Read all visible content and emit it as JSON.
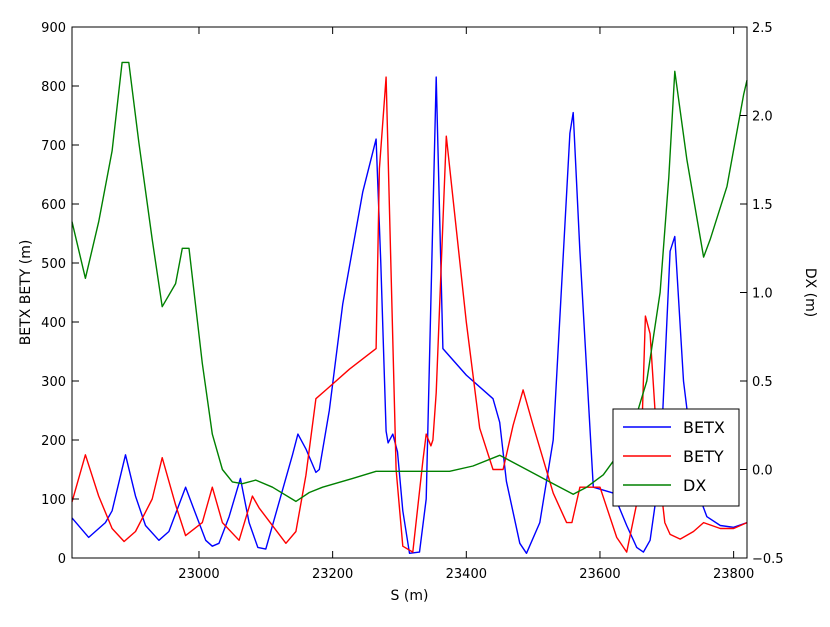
{
  "chart_data": {
    "type": "line",
    "xlabel": "S (m)",
    "ylabel_left": "BETX BETY (m)",
    "ylabel_right": "DX (m)",
    "xlim": [
      22810,
      23820
    ],
    "ylim_left": [
      0,
      900
    ],
    "ylim_right": [
      -0.5,
      2.5
    ],
    "x_ticks": [
      23000,
      23200,
      23400,
      23600,
      23800
    ],
    "y_left_ticks": [
      0,
      100,
      200,
      300,
      400,
      500,
      600,
      700,
      800,
      900
    ],
    "y_right_ticks": [
      -0.5,
      0.0,
      0.5,
      1.0,
      1.5,
      2.0,
      2.5
    ],
    "y_right_tick_labels": [
      "−0.5",
      "0.0",
      "0.5",
      "1.0",
      "1.5",
      "2.0",
      "2.5"
    ],
    "grid": false,
    "legend_position": "lower-right",
    "series": [
      {
        "name": "BETX",
        "axis": "left",
        "color": "#0000ff",
        "x": [
          22810,
          22835,
          22860,
          22870,
          22890,
          22905,
          22920,
          22940,
          22955,
          22980,
          22995,
          23010,
          23020,
          23030,
          23045,
          23062,
          23075,
          23088,
          23100,
          23140,
          23148,
          23160,
          23175,
          23180,
          23195,
          23215,
          23245,
          23265,
          23272,
          23280,
          23283,
          23290,
          23297,
          23305,
          23315,
          23330,
          23340,
          23355,
          23365,
          23400,
          23440,
          23450,
          23460,
          23480,
          23490,
          23510,
          23530,
          23555,
          23560,
          23570,
          23590,
          23620,
          23640,
          23655,
          23665,
          23675,
          23690,
          23705,
          23712,
          23725,
          23745,
          23760,
          23780,
          23800,
          23820
        ],
        "y": [
          68,
          35,
          60,
          80,
          175,
          105,
          55,
          30,
          45,
          120,
          75,
          30,
          20,
          25,
          70,
          135,
          60,
          18,
          15,
          175,
          210,
          185,
          145,
          150,
          250,
          430,
          620,
          710,
          500,
          215,
          195,
          210,
          180,
          80,
          8,
          10,
          100,
          815,
          355,
          310,
          270,
          230,
          130,
          25,
          8,
          60,
          200,
          720,
          755,
          520,
          120,
          110,
          55,
          18,
          10,
          30,
          150,
          520,
          545,
          300,
          115,
          70,
          55,
          52,
          60
        ]
      },
      {
        "name": "BETY",
        "axis": "left",
        "color": "#ff0000",
        "x": [
          22810,
          22830,
          22850,
          22870,
          22888,
          22905,
          22930,
          22945,
          22965,
          22980,
          23005,
          23020,
          23035,
          23060,
          23080,
          23090,
          23130,
          23145,
          23160,
          23175,
          23190,
          23225,
          23265,
          23270,
          23280,
          23295,
          23305,
          23320,
          23335,
          23340,
          23347,
          23350,
          23355,
          23370,
          23400,
          23420,
          23440,
          23455,
          23470,
          23485,
          23500,
          23530,
          23550,
          23558,
          23570,
          23600,
          23625,
          23640,
          23660,
          23668,
          23675,
          23688,
          23697,
          23705,
          23720,
          23740,
          23755,
          23780,
          23800,
          23820
        ],
        "y": [
          95,
          175,
          105,
          50,
          28,
          45,
          100,
          170,
          90,
          38,
          60,
          120,
          60,
          30,
          105,
          85,
          25,
          45,
          140,
          270,
          285,
          320,
          355,
          660,
          815,
          150,
          20,
          10,
          165,
          210,
          190,
          200,
          280,
          715,
          400,
          220,
          150,
          150,
          225,
          285,
          225,
          110,
          60,
          60,
          120,
          120,
          35,
          10,
          120,
          410,
          380,
          150,
          60,
          40,
          32,
          45,
          60,
          50,
          50,
          60
        ]
      },
      {
        "name": "DX",
        "axis": "right",
        "color": "#008000",
        "x": [
          22810,
          22830,
          22850,
          22870,
          22885,
          22895,
          22910,
          22930,
          22945,
          22965,
          22975,
          22985,
          23005,
          23020,
          23035,
          23050,
          23065,
          23085,
          23110,
          23145,
          23165,
          23185,
          23230,
          23265,
          23310,
          23375,
          23410,
          23450,
          23490,
          23530,
          23560,
          23580,
          23605,
          23630,
          23650,
          23670,
          23690,
          23703,
          23712,
          23730,
          23755,
          23765,
          23790,
          23815,
          23820
        ],
        "y": [
          1.4,
          1.08,
          1.4,
          1.8,
          2.3,
          2.3,
          1.85,
          1.3,
          0.92,
          1.05,
          1.25,
          1.25,
          0.6,
          0.2,
          0.0,
          -0.07,
          -0.08,
          -0.06,
          -0.1,
          -0.18,
          -0.13,
          -0.1,
          -0.05,
          -0.01,
          -0.01,
          -0.01,
          0.02,
          0.08,
          0.0,
          -0.08,
          -0.14,
          -0.1,
          -0.03,
          0.1,
          0.25,
          0.5,
          1.0,
          1.65,
          2.25,
          1.75,
          1.2,
          1.3,
          1.6,
          2.12,
          2.2
        ]
      }
    ]
  }
}
